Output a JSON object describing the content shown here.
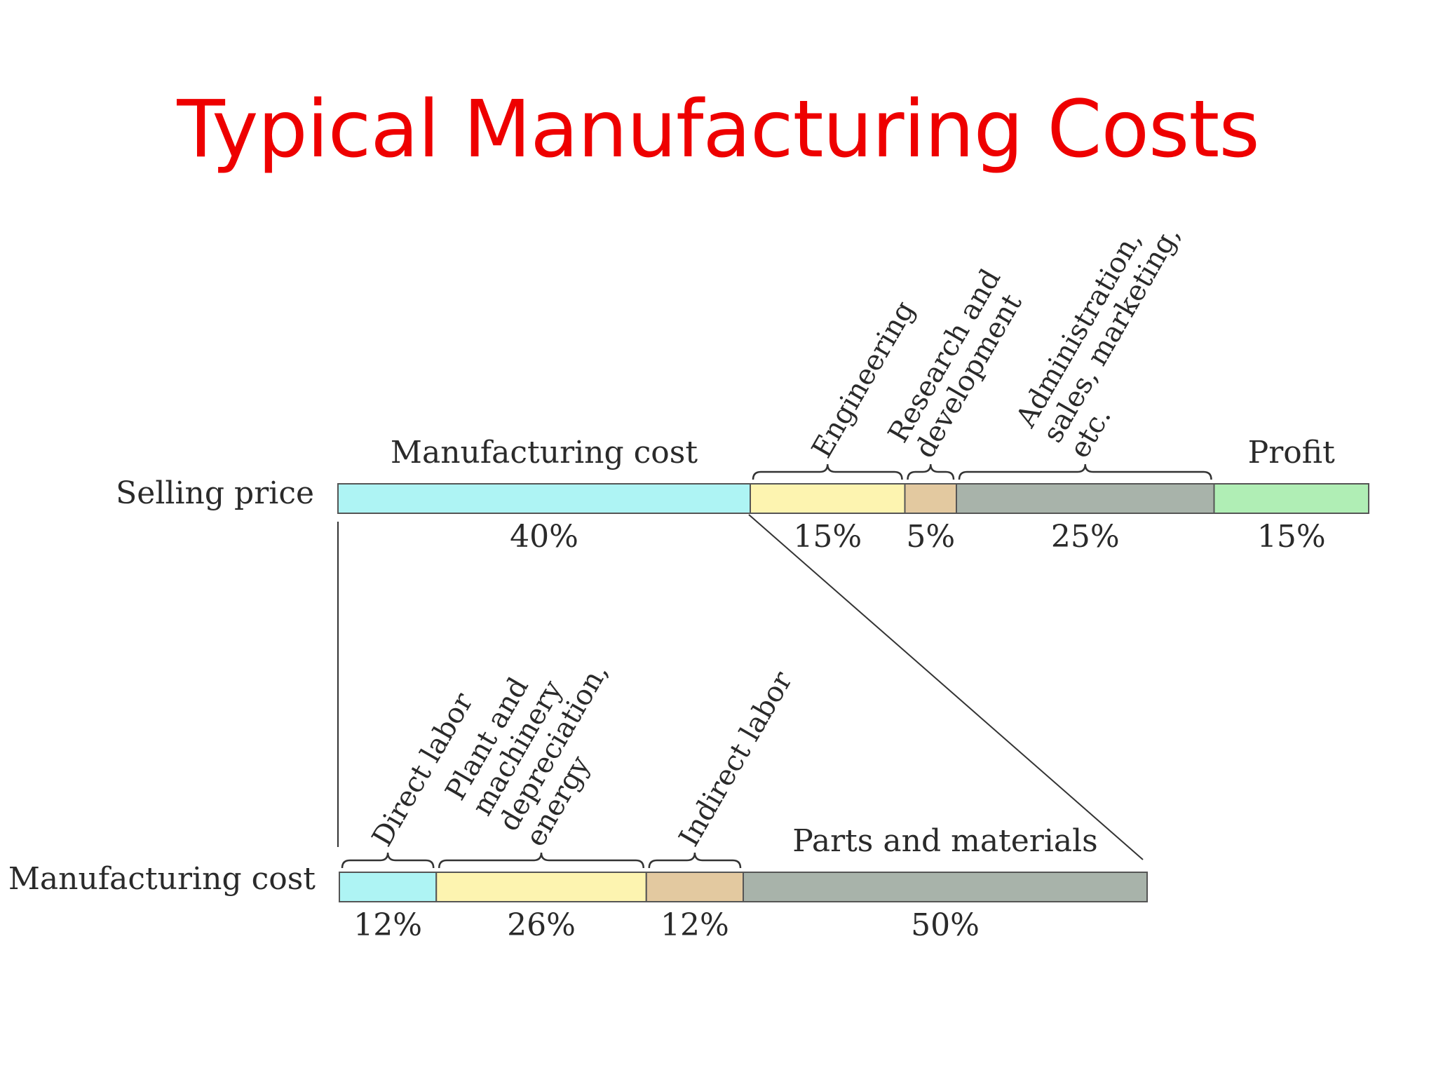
{
  "title": "Typical Manufacturing Costs",
  "colors": {
    "title": "#ee0000",
    "cyan": "#aef4f4",
    "yellow": "#fdf4b0",
    "tan": "#e3c9a0",
    "gray": "#a8b3aa",
    "green": "#b0eeb5"
  },
  "selling_price": {
    "row_label": "Selling price",
    "segments": [
      {
        "label": "Manufacturing cost",
        "percent": "40%",
        "value": 40,
        "color": "cyan"
      },
      {
        "label": "Engineering",
        "percent": "15%",
        "value": 15,
        "color": "yellow"
      },
      {
        "label": "Research and\ndevelopment",
        "percent": "5%",
        "value": 5,
        "color": "tan"
      },
      {
        "label": "Administration,\nsales, marketing,\netc.",
        "percent": "25%",
        "value": 25,
        "color": "gray"
      },
      {
        "label": "Profit",
        "percent": "15%",
        "value": 15,
        "color": "green"
      }
    ]
  },
  "manufacturing_cost": {
    "row_label": "Manufacturing cost",
    "segments": [
      {
        "label": "Direct labor",
        "percent": "12%",
        "value": 12,
        "color": "cyan"
      },
      {
        "label": "Plant and\nmachinery\ndepreciation,\nenergy",
        "percent": "26%",
        "value": 26,
        "color": "yellow"
      },
      {
        "label": "Indirect labor",
        "percent": "12%",
        "value": 12,
        "color": "tan"
      },
      {
        "label": "Parts and materials",
        "percent": "50%",
        "value": 50,
        "color": "gray"
      }
    ]
  }
}
